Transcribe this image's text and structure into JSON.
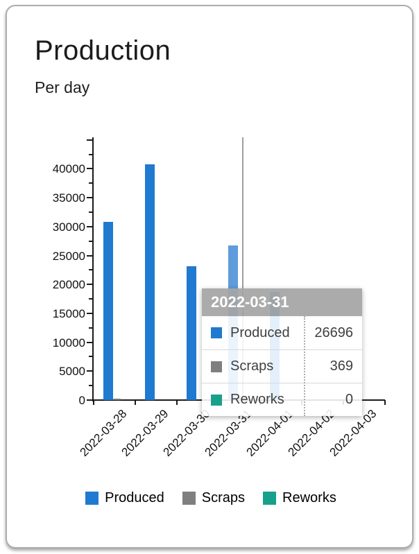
{
  "card": {
    "title": "Production",
    "subtitle": "Per day"
  },
  "chart_data": {
    "type": "bar",
    "title": "Production",
    "subtitle": "Per day",
    "xlabel": "",
    "ylabel": "",
    "categories": [
      "2022-03-28",
      "2022-03-29",
      "2022-03-30",
      "2022-03-31",
      "2022-04-01",
      "2022-04-02",
      "2022-04-03"
    ],
    "series": [
      {
        "name": "Produced",
        "color": "#1F7AD0",
        "values": [
          30800,
          40800,
          23200,
          26696,
          18700,
          0,
          0
        ]
      },
      {
        "name": "Scraps",
        "color": "#7F7F7F",
        "values": [
          250,
          0,
          0,
          369,
          0,
          0,
          0
        ]
      },
      {
        "name": "Reworks",
        "color": "#17A08C",
        "values": [
          0,
          0,
          0,
          0,
          0,
          0,
          0
        ]
      }
    ],
    "highlighted_category_index": 3,
    "highlight_color": "#5E9CDC",
    "ylim": [
      0,
      45000
    ],
    "y_major_tick_step": 5000,
    "y_minor_tick_step": 2500,
    "y_tick_labels": [
      "0",
      "5000",
      "10000",
      "15000",
      "20000",
      "25000",
      "30000",
      "35000",
      "40000"
    ],
    "grid": false,
    "legend_position": "bottom"
  },
  "tooltip": {
    "title": "2022-03-31",
    "rows": [
      {
        "label": "Produced",
        "value": "26696",
        "color": "#1F7AD0"
      },
      {
        "label": "Scraps",
        "value": "369",
        "color": "#7F7F7F"
      },
      {
        "label": "Reworks",
        "value": "0",
        "color": "#17A08C"
      }
    ]
  }
}
